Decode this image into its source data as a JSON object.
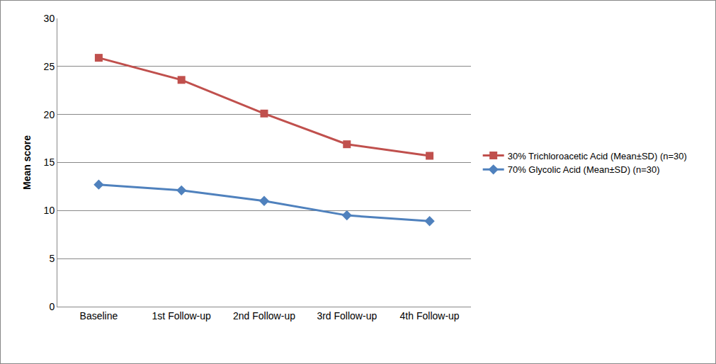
{
  "chart_data": {
    "type": "line",
    "y_label": "Mean score",
    "categories": [
      "Baseline",
      "1st Follow-up",
      "2nd Follow-up",
      "3rd Follow-up",
      "4th Follow-up"
    ],
    "series": [
      {
        "name": "30% Trichloroacetic Acid (Mean±SD) (n=30)",
        "color": "#c0504d",
        "marker": "square",
        "values": [
          25.9,
          23.6,
          20.1,
          16.9,
          15.7
        ]
      },
      {
        "name": "70% Glycolic Acid (Mean±SD) (n=30)",
        "color": "#4f81bd",
        "marker": "diamond",
        "values": [
          12.7,
          12.1,
          11.0,
          9.5,
          8.9
        ]
      }
    ],
    "ylim": [
      0,
      30
    ],
    "yticks": [
      0,
      5,
      10,
      15,
      20,
      25,
      30
    ],
    "grid": true,
    "legend": "right"
  }
}
